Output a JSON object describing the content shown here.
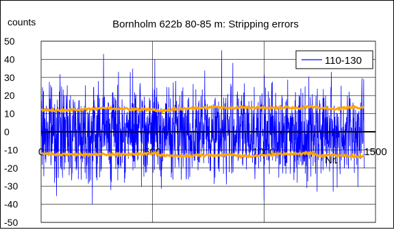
{
  "chart_data": {
    "type": "line",
    "title": "Bornholm 622b 80-85 m: Stripping errors",
    "ylabel": "counts",
    "xlabel": "Nr.",
    "xlim": [
      0,
      1500
    ],
    "ylim": [
      -50,
      50
    ],
    "x_ticks": [
      0,
      500,
      1000,
      1500
    ],
    "x_tick_labels": [
      "0",
      "500",
      "1000",
      "1500"
    ],
    "y_ticks": [
      -50,
      -40,
      -30,
      -20,
      -10,
      0,
      10,
      20,
      30,
      40,
      50
    ],
    "y_tick_labels": [
      "-50",
      "-40",
      "-30",
      "-20",
      "-10",
      "0",
      "10",
      "20",
      "30",
      "40",
      "50"
    ],
    "grid": "horizontal-and-vertical-major",
    "legend": {
      "placement": "top-right",
      "entries": [
        "110-130"
      ]
    },
    "series": [
      {
        "name": "110-130",
        "color": "#0000ff",
        "style": "noisy-line",
        "n_points": 1450,
        "x_range": [
          0,
          1450
        ],
        "approx_mean": 0,
        "approx_envelope": [
          -40,
          45
        ],
        "approx_std": 12,
        "notable_peaks": [
          {
            "x": 280,
            "y": 43
          },
          {
            "x": 510,
            "y": 40
          },
          {
            "x": 810,
            "y": 45
          },
          {
            "x": 860,
            "y": 38
          },
          {
            "x": 230,
            "y": -40
          },
          {
            "x": 1000,
            "y": -38
          },
          {
            "x": 1310,
            "y": -33
          }
        ]
      },
      {
        "name": "",
        "color": "#ffa500",
        "style": "upper-error-band",
        "x": [
          0,
          100,
          200,
          300,
          400,
          500,
          550,
          600,
          700,
          800,
          850,
          900,
          1000,
          1050,
          1100,
          1150,
          1200,
          1250,
          1300,
          1350,
          1400,
          1450
        ],
        "y": [
          12,
          12,
          12.5,
          13,
          12.5,
          12,
          11.5,
          12.5,
          13,
          13.5,
          13,
          13.5,
          13.5,
          13,
          13.5,
          13,
          14,
          13.5,
          12.5,
          13,
          13.5,
          13.5
        ]
      },
      {
        "name": "",
        "color": "#ffa500",
        "style": "lower-error-band",
        "x": [
          0,
          100,
          200,
          300,
          400,
          500,
          550,
          600,
          700,
          800,
          850,
          900,
          1000,
          1050,
          1100,
          1150,
          1200,
          1250,
          1300,
          1350,
          1400,
          1450
        ],
        "y": [
          -12,
          -12.5,
          -12.5,
          -12.5,
          -12.5,
          -12,
          -13,
          -13.5,
          -13,
          -13,
          -12.5,
          -13.5,
          -13,
          -12.5,
          -12,
          -12.5,
          -11.5,
          -13.5,
          -13,
          -13,
          -13.5,
          -13.5
        ]
      }
    ]
  }
}
